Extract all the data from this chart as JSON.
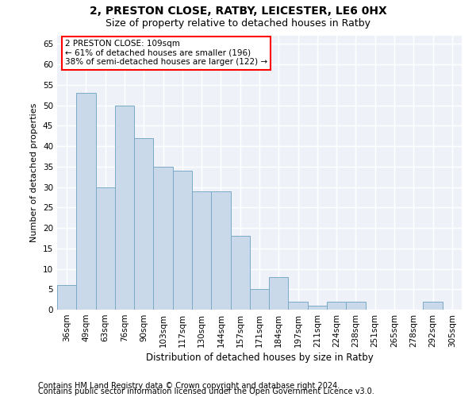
{
  "title1": "2, PRESTON CLOSE, RATBY, LEICESTER, LE6 0HX",
  "title2": "Size of property relative to detached houses in Ratby",
  "xlabel": "Distribution of detached houses by size in Ratby",
  "ylabel": "Number of detached properties",
  "categories": [
    "36sqm",
    "49sqm",
    "63sqm",
    "76sqm",
    "90sqm",
    "103sqm",
    "117sqm",
    "130sqm",
    "144sqm",
    "157sqm",
    "171sqm",
    "184sqm",
    "197sqm",
    "211sqm",
    "224sqm",
    "238sqm",
    "251sqm",
    "265sqm",
    "278sqm",
    "292sqm",
    "305sqm"
  ],
  "values": [
    6,
    53,
    30,
    50,
    42,
    35,
    34,
    29,
    29,
    18,
    5,
    8,
    2,
    1,
    2,
    2,
    0,
    0,
    0,
    2,
    0
  ],
  "bar_color": "#c9d9ea",
  "bar_edge_color": "#7aaac8",
  "ylim": [
    0,
    67
  ],
  "yticks": [
    0,
    5,
    10,
    15,
    20,
    25,
    30,
    35,
    40,
    45,
    50,
    55,
    60,
    65
  ],
  "annotation_text": "2 PRESTON CLOSE: 109sqm\n← 61% of detached houses are smaller (196)\n38% of semi-detached houses are larger (122) →",
  "footer1": "Contains HM Land Registry data © Crown copyright and database right 2024.",
  "footer2": "Contains public sector information licensed under the Open Government Licence v3.0.",
  "bg_color": "#ffffff",
  "plot_bg_color": "#eef2f8",
  "grid_color": "#ffffff",
  "title1_fontsize": 10,
  "title2_fontsize": 9,
  "xlabel_fontsize": 8.5,
  "ylabel_fontsize": 8,
  "tick_fontsize": 7.5,
  "footer_fontsize": 7,
  "ann_fontsize": 7.5
}
